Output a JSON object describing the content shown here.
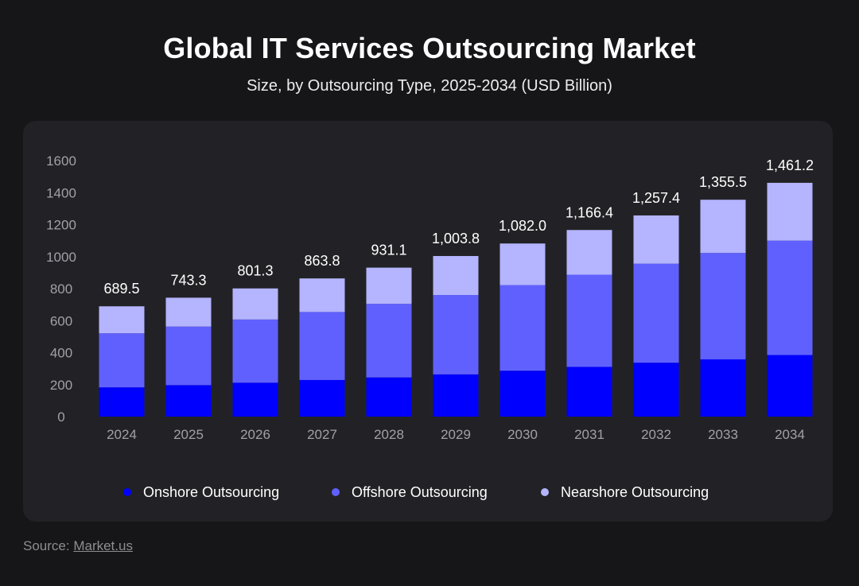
{
  "title": "Global IT Services Outsourcing Market",
  "subtitle": "Size, by Outsourcing Type, 2025-2034 (USD Billion)",
  "source_label": "Source:",
  "source_link": "Market.us",
  "colors": {
    "onshore": "#0000ff",
    "offshore": "#6060ff",
    "nearshore": "#b4b4ff",
    "background": "#161618",
    "panel": "#222226",
    "tick_text": "#a0a0a6"
  },
  "chart_data": {
    "type": "bar",
    "stacked": true,
    "categories": [
      "2024",
      "2025",
      "2026",
      "2027",
      "2028",
      "2029",
      "2030",
      "2031",
      "2032",
      "2033",
      "2034"
    ],
    "series": [
      {
        "name": "Onshore Outsourcing",
        "values": [
          183,
          197,
          212,
          229,
          245,
          264,
          287,
          311,
          337,
          358,
          385
        ]
      },
      {
        "name": "Offshore Outsourcing",
        "values": [
          338,
          366,
          395,
          425,
          460,
          496,
          535,
          576,
          619,
          665,
          715
        ]
      },
      {
        "name": "Nearshore Outsourcing",
        "values": [
          168.5,
          180.3,
          194.3,
          209.8,
          226.1,
          243.8,
          260.0,
          279.4,
          301.4,
          332.5,
          361.2
        ]
      }
    ],
    "totals_labels": [
      "689.5",
      "743.3",
      "801.3",
      "863.8",
      "931.1",
      "1,003.8",
      "1,082.0",
      "1,166.4",
      "1,257.4",
      "1,355.5",
      "1,461.2"
    ],
    "y_ticks": [
      "0",
      "200",
      "400",
      "600",
      "800",
      "1000",
      "1200",
      "1400",
      "1600"
    ],
    "ylim": [
      0,
      1600
    ],
    "xlabel": "",
    "ylabel": "",
    "grid": false,
    "legend_position": "bottom-center"
  }
}
